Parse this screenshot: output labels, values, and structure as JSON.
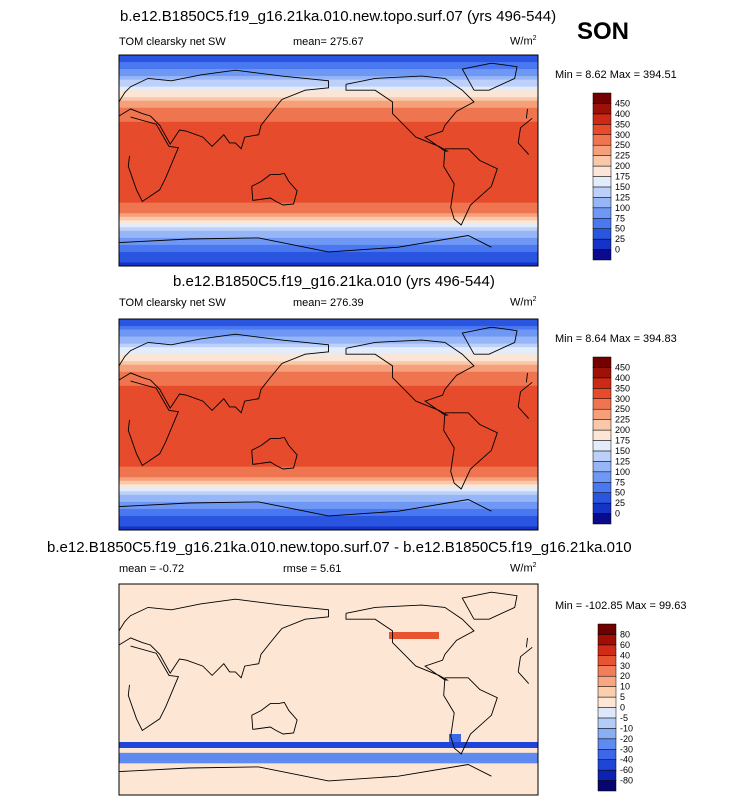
{
  "season": "SON",
  "panels": [
    {
      "title": "b.e12.B1850C5.f19_g16.21ka.010.new.topo.surf.07 (yrs 496-544)",
      "variable": "TOM clearsky net SW",
      "mean_text": "mean= 275.67",
      "units": "W/m",
      "units_exp": "2",
      "minmax": "Min =  8.62 Max = 394.51"
    },
    {
      "title": "b.e12.B1850C5.f19_g16.21ka.010 (yrs 496-544)",
      "variable": "TOM clearsky net SW",
      "mean_text": "mean= 276.39",
      "units": "W/m",
      "units_exp": "2",
      "minmax": "Min =  8.64 Max = 394.83"
    },
    {
      "title": "b.e12.B1850C5.f19_g16.21ka.010.new.topo.surf.07 - b.e12.B1850C5.f19_g16.21ka.010",
      "variable": "mean =  -0.72",
      "mean_text": "rmse =   5.61",
      "units": "W/m",
      "units_exp": "2",
      "minmax": "Min = -102.85 Max = 99.63"
    }
  ],
  "chart_data": [
    {
      "type": "heatmap",
      "title": "b.e12.B1850C5.f19_g16.21ka.010.new.topo.surf.07 (yrs 496-544)",
      "variable": "TOM clearsky net SW",
      "mean": 275.67,
      "min": 8.62,
      "max": 394.51,
      "units": "W/m2",
      "colorbar_levels": [
        0,
        25,
        50,
        75,
        100,
        125,
        150,
        175,
        200,
        225,
        250,
        300,
        350,
        400,
        450
      ],
      "colorbar_colors": [
        "#0a0a8c",
        "#1533c7",
        "#2a55e0",
        "#4a78f0",
        "#6f98f5",
        "#97b6f7",
        "#bcd0f9",
        "#e2ecfb",
        "#fbe5d6",
        "#f9c8a8",
        "#f5a07a",
        "#ef7550",
        "#e64b2c",
        "#cc2a16",
        "#9c1208",
        "#750000"
      ],
      "latitude_profile": {
        "lat": [
          90,
          75,
          60,
          45,
          30,
          15,
          0,
          -15,
          -30,
          -45,
          -60,
          -75,
          -90
        ],
        "value": [
          30,
          90,
          170,
          250,
          315,
          340,
          345,
          340,
          320,
          260,
          130,
          60,
          15
        ]
      }
    },
    {
      "type": "heatmap",
      "title": "b.e12.B1850C5.f19_g16.21ka.010 (yrs 496-544)",
      "variable": "TOM clearsky net SW",
      "mean": 276.39,
      "min": 8.64,
      "max": 394.83,
      "units": "W/m2",
      "colorbar_levels": [
        0,
        25,
        50,
        75,
        100,
        125,
        150,
        175,
        200,
        225,
        250,
        300,
        350,
        400,
        450
      ],
      "colorbar_colors": [
        "#0a0a8c",
        "#1533c7",
        "#2a55e0",
        "#4a78f0",
        "#6f98f5",
        "#97b6f7",
        "#bcd0f9",
        "#e2ecfb",
        "#fbe5d6",
        "#f9c8a8",
        "#f5a07a",
        "#ef7550",
        "#e64b2c",
        "#cc2a16",
        "#9c1208",
        "#750000"
      ],
      "latitude_profile": {
        "lat": [
          90,
          75,
          60,
          45,
          30,
          15,
          0,
          -15,
          -30,
          -45,
          -60,
          -75,
          -90
        ],
        "value": [
          30,
          95,
          175,
          255,
          315,
          340,
          345,
          340,
          320,
          260,
          130,
          60,
          15
        ]
      }
    },
    {
      "type": "heatmap",
      "title": "b.e12.B1850C5.f19_g16.21ka.010.new.topo.surf.07 - b.e12.B1850C5.f19_g16.21ka.010",
      "mean": -0.72,
      "rmse": 5.61,
      "min": -102.85,
      "max": 99.63,
      "units": "W/m2",
      "colorbar_levels": [
        -80,
        -60,
        -40,
        -30,
        -20,
        -10,
        -5,
        0,
        5,
        10,
        20,
        30,
        40,
        60,
        80
      ],
      "colorbar_colors": [
        "#06066e",
        "#0d22b0",
        "#1f45d8",
        "#3b67e8",
        "#5f8bf0",
        "#8aaef4",
        "#b4cdf7",
        "#dde9fb",
        "#fde7d4",
        "#fbcfae",
        "#f7a883",
        "#f07e58",
        "#e65432",
        "#cf2b16",
        "#a20e05",
        "#6e0000"
      ],
      "features": [
        "near-zero differences over most of globe",
        "strong negative band near 60S",
        "strong positive anomaly off North America"
      ]
    }
  ]
}
